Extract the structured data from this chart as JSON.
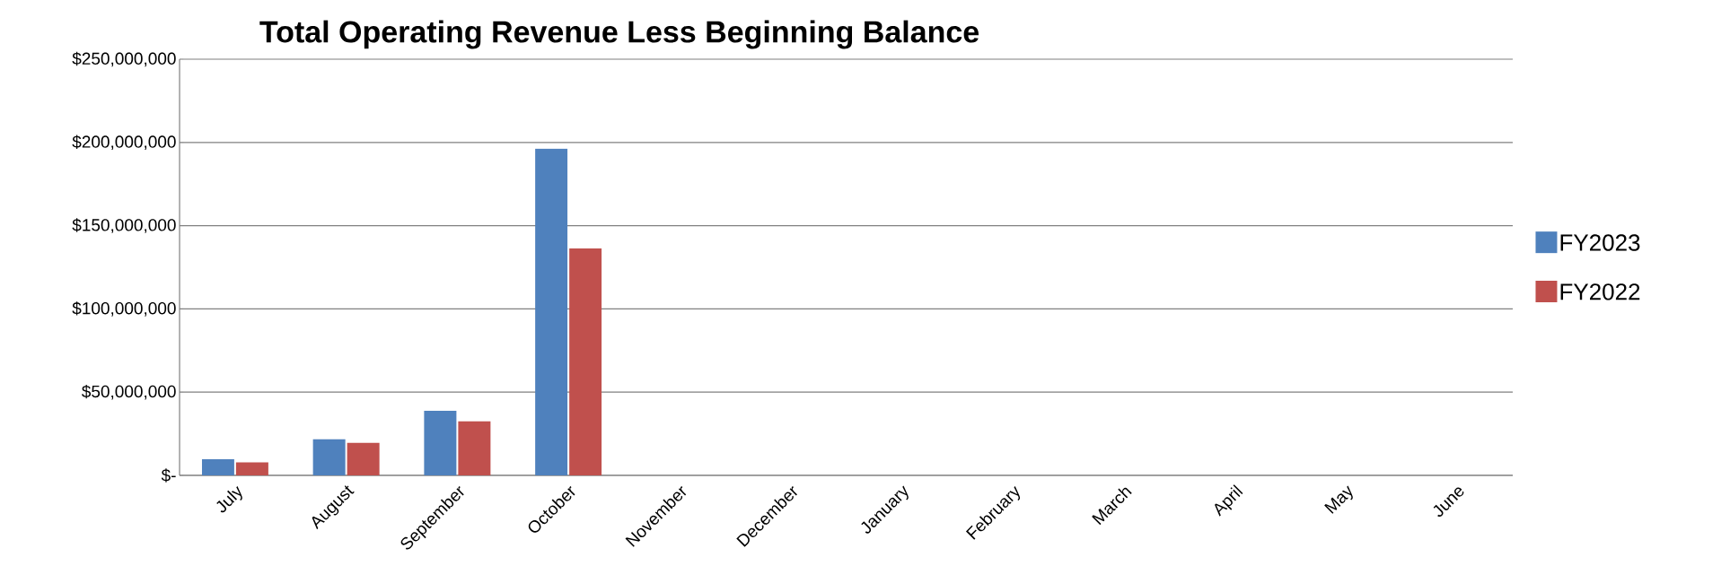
{
  "chart_data": {
    "type": "bar",
    "title": "Total Operating Revenue Less Beginning Balance",
    "categories": [
      "July",
      "August",
      "September",
      "October",
      "November",
      "December",
      "January",
      "February",
      "March",
      "April",
      "May",
      "June"
    ],
    "series": [
      {
        "name": "FY2023",
        "color": "#4f81bd",
        "values": [
          9700000.0,
          21700000.0,
          38800000.0,
          196200000.0,
          null,
          null,
          null,
          null,
          null,
          null,
          null,
          null
        ]
      },
      {
        "name": "FY2022",
        "color": "#c0504d",
        "values": [
          7800000.0,
          19500000.0,
          32500000.0,
          136300000.0,
          null,
          null,
          null,
          null,
          null,
          null,
          null,
          null
        ]
      }
    ],
    "ylim": [
      0,
      250000000
    ],
    "yticks": [
      {
        "value": 0,
        "label": "$-"
      },
      {
        "value": 50000000,
        "label": "$50,000,000"
      },
      {
        "value": 100000000,
        "label": "$100,000,000"
      },
      {
        "value": 150000000,
        "label": "$150,000,000"
      },
      {
        "value": 200000000,
        "label": "$200,000,000"
      },
      {
        "value": 250000000,
        "label": "$250,000,000"
      }
    ],
    "grid": "y",
    "legend": "right"
  }
}
